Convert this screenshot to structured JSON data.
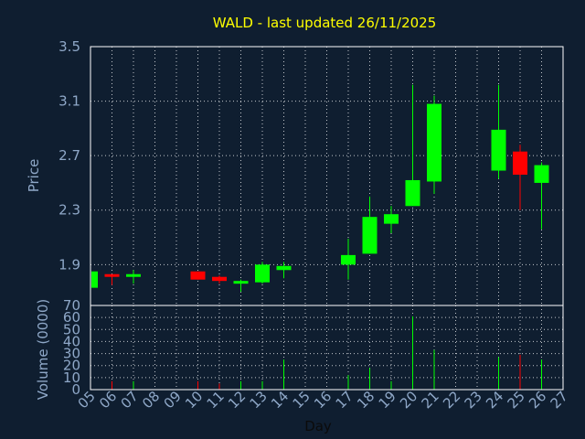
{
  "chart_data": [
    {
      "type": "candlestick",
      "title": "WALD - last updated 26/11/2025",
      "ylabel": "Price",
      "ylim": [
        1.6,
        3.5
      ],
      "yticks": [
        "1.9",
        "2.3",
        "2.7",
        "3.1",
        "3.5"
      ],
      "grid": true,
      "colors": {
        "up": "#00ff00",
        "down": "#ff0000"
      },
      "candles": [
        {
          "day": "05",
          "open": 1.73,
          "high": 1.85,
          "low": 1.73,
          "close": 1.85
        },
        {
          "day": "06",
          "open": 1.83,
          "high": 1.83,
          "low": 1.75,
          "close": 1.81
        },
        {
          "day": "07",
          "open": 1.81,
          "high": 1.86,
          "low": 1.76,
          "close": 1.83
        },
        {
          "day": "10",
          "open": 1.85,
          "high": 1.85,
          "low": 1.79,
          "close": 1.79
        },
        {
          "day": "11",
          "open": 1.81,
          "high": 1.82,
          "low": 1.76,
          "close": 1.78
        },
        {
          "day": "12",
          "open": 1.76,
          "high": 1.79,
          "low": 1.7,
          "close": 1.78
        },
        {
          "day": "13",
          "open": 1.77,
          "high": 1.92,
          "low": 1.76,
          "close": 1.9
        },
        {
          "day": "14",
          "open": 1.86,
          "high": 1.92,
          "low": 1.8,
          "close": 1.89
        },
        {
          "day": "17",
          "open": 1.9,
          "high": 2.09,
          "low": 1.79,
          "close": 1.97
        },
        {
          "day": "18",
          "open": 1.98,
          "high": 2.4,
          "low": 1.98,
          "close": 2.25
        },
        {
          "day": "19",
          "open": 2.2,
          "high": 2.33,
          "low": 2.13,
          "close": 2.27
        },
        {
          "day": "20",
          "open": 2.33,
          "high": 3.22,
          "low": 2.33,
          "close": 2.52
        },
        {
          "day": "21",
          "open": 2.51,
          "high": 3.14,
          "low": 2.42,
          "close": 3.08
        },
        {
          "day": "24",
          "open": 2.59,
          "high": 3.22,
          "low": 2.53,
          "close": 2.89
        },
        {
          "day": "25",
          "open": 2.73,
          "high": 2.78,
          "low": 2.3,
          "close": 2.56
        },
        {
          "day": "26",
          "open": 2.5,
          "high": 2.65,
          "low": 2.16,
          "close": 2.63
        }
      ]
    },
    {
      "type": "bar",
      "ylabel": "Volume (0000)",
      "xlabel": "Day",
      "ylim": [
        0,
        70
      ],
      "yticks": [
        "0",
        "10",
        "20",
        "30",
        "40",
        "50",
        "60",
        "70"
      ],
      "categories": [
        "05",
        "06",
        "07",
        "08",
        "09",
        "10",
        "11",
        "12",
        "13",
        "14",
        "15",
        "16",
        "17",
        "18",
        "19",
        "20",
        "21",
        "22",
        "23",
        "24",
        "25",
        "26",
        "27"
      ],
      "volumes": [
        {
          "day": "05",
          "value": 1,
          "dir": "up"
        },
        {
          "day": "06",
          "value": 7,
          "dir": "down"
        },
        {
          "day": "07",
          "value": 7,
          "dir": "up"
        },
        {
          "day": "10",
          "value": 7,
          "dir": "down"
        },
        {
          "day": "11",
          "value": 5,
          "dir": "down"
        },
        {
          "day": "12",
          "value": 7,
          "dir": "up"
        },
        {
          "day": "13",
          "value": 7,
          "dir": "up"
        },
        {
          "day": "14",
          "value": 25,
          "dir": "up"
        },
        {
          "day": "17",
          "value": 12,
          "dir": "up"
        },
        {
          "day": "18",
          "value": 18,
          "dir": "up"
        },
        {
          "day": "19",
          "value": 7,
          "dir": "up"
        },
        {
          "day": "20",
          "value": 61,
          "dir": "up"
        },
        {
          "day": "21",
          "value": 33,
          "dir": "up"
        },
        {
          "day": "24",
          "value": 27,
          "dir": "up"
        },
        {
          "day": "25",
          "value": 29,
          "dir": "down"
        },
        {
          "day": "26",
          "value": 25,
          "dir": "up"
        }
      ]
    }
  ]
}
